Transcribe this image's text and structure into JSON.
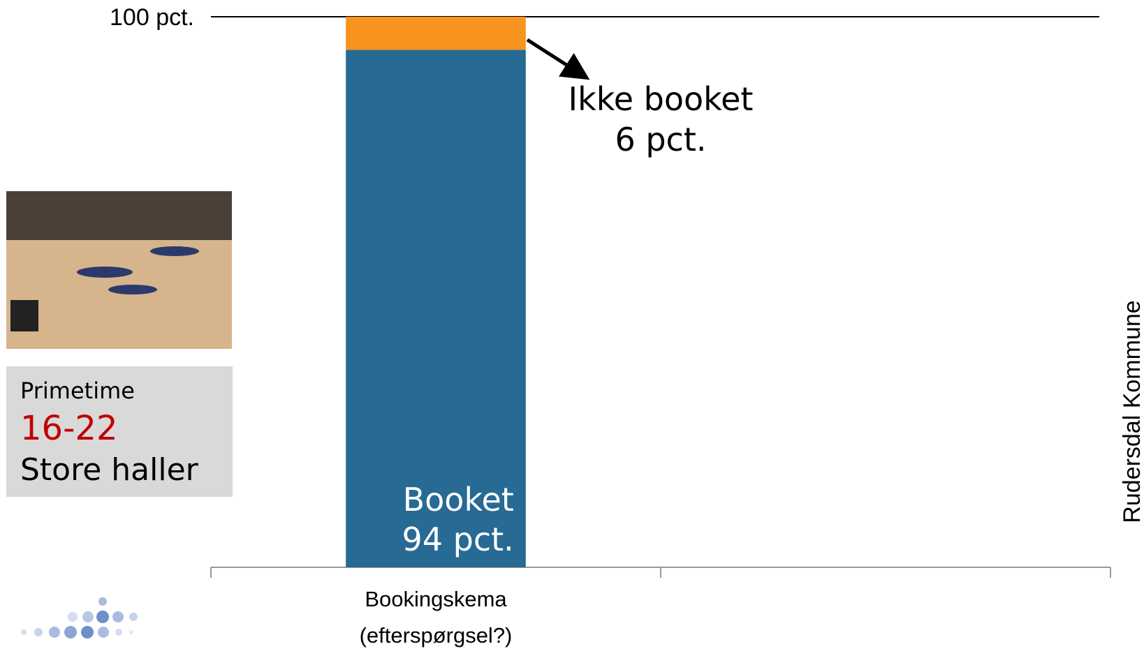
{
  "chart_data": {
    "type": "stacked-bar",
    "categories": [
      "Bookingskema\n(efterspørgsel?)",
      null
    ],
    "series": [
      {
        "name": "Booket",
        "color": "#276a93",
        "values": [
          94,
          null
        ],
        "value_labels": [
          "94 pct.",
          null
        ]
      },
      {
        "name": "Ikke booket",
        "color": "#f7941d",
        "values": [
          6,
          null
        ],
        "value_labels": [
          "6 pct.",
          null
        ]
      }
    ],
    "ylim": [
      0,
      100
    ],
    "yticks": [
      {
        "value": 100,
        "label": "100 pct."
      }
    ],
    "side_note": "Rudersdal Kommune"
  },
  "info_box": {
    "heading": "Primetime",
    "time": "16-22",
    "subject": "Store haller"
  }
}
